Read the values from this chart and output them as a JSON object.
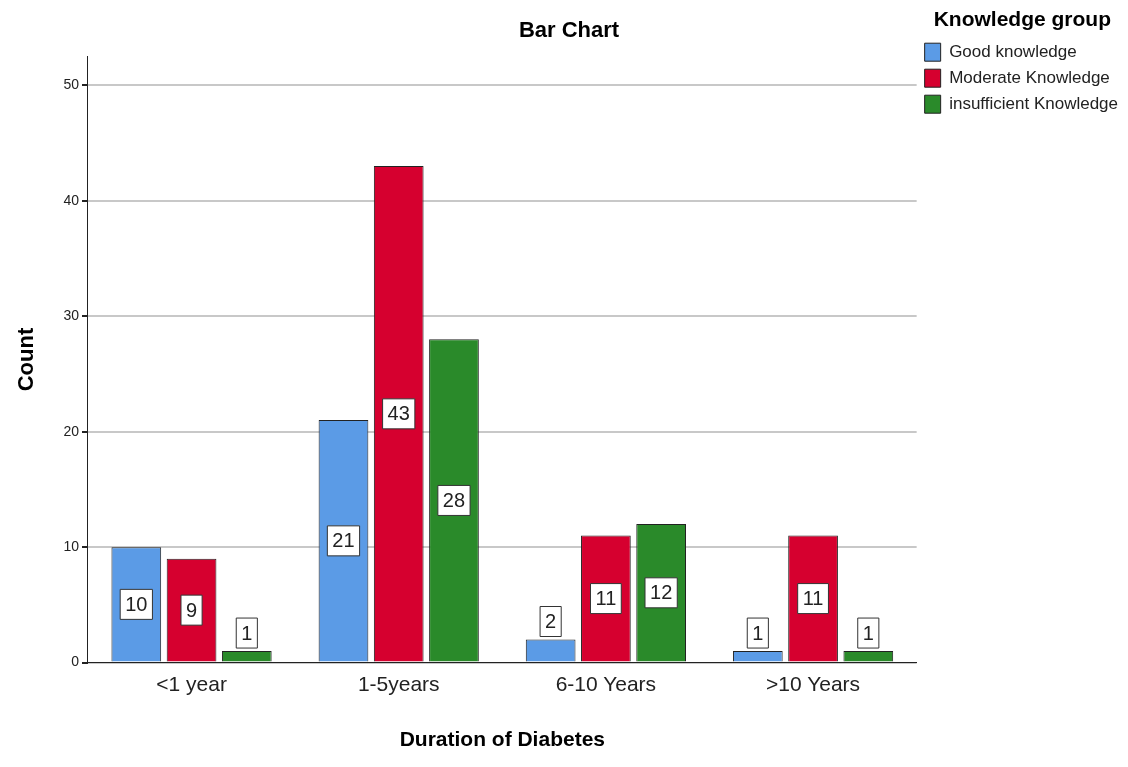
{
  "chart_data": {
    "type": "bar",
    "title": "Bar Chart",
    "xlabel": "Duration of Diabetes",
    "ylabel": "Count",
    "legend_title": "Knowledge group",
    "categories": [
      "<1 year",
      "1-5years",
      "6-10 Years",
      ">10 Years"
    ],
    "series": [
      {
        "name": "Good knowledge",
        "color": "#5b9be6",
        "values": [
          10,
          21,
          2,
          1
        ]
      },
      {
        "name": "Moderate Knowledge",
        "color": "#d6002f",
        "values": [
          9,
          43,
          11,
          11
        ]
      },
      {
        "name": "insufficient Knowledge",
        "color": "#2a8a2a",
        "values": [
          1,
          28,
          12,
          1
        ]
      }
    ],
    "ylim": [
      0,
      52.5
    ],
    "yticks": [
      0,
      10,
      20,
      30,
      40,
      50
    ],
    "grid": "y",
    "legend": "top right",
    "data_labels": true
  }
}
